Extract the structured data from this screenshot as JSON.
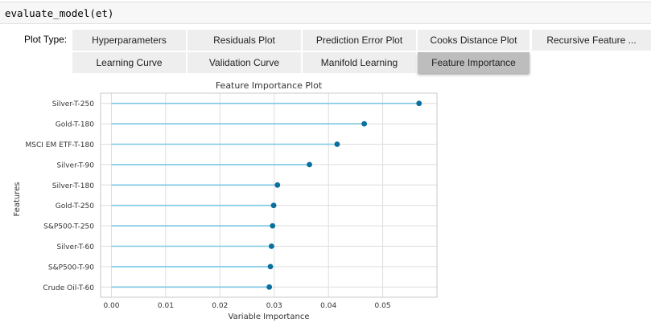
{
  "cell": {
    "code": "evaluate_model(et)"
  },
  "plot_type": {
    "label": "Plot Type:",
    "tabs_row1": [
      "Hyperparameters",
      "Residuals Plot",
      "Prediction Error Plot",
      "Cooks Distance Plot",
      "Recursive Feature ..."
    ],
    "tabs_row2": [
      "Learning Curve",
      "Validation Curve",
      "Manifold Learning",
      "Feature Importance"
    ],
    "selected": "Feature Importance"
  },
  "chart_data": {
    "type": "lollipop",
    "title": "Feature Importance Plot",
    "xlabel": "Variable Importance",
    "ylabel": "Features",
    "xlim": [
      -0.002,
      0.06
    ],
    "xticks": [
      0.0,
      0.01,
      0.02,
      0.03,
      0.04,
      0.05
    ],
    "xtick_labels": [
      "0.00",
      "0.01",
      "0.02",
      "0.03",
      "0.04",
      "0.05"
    ],
    "grid": true,
    "colors": {
      "stem": "#7ec8e3",
      "marker": "#0a6f9c",
      "grid": "#dddddd",
      "frame": "#c8c8c8"
    },
    "features": [
      "Silver-T-250",
      "Gold-T-180",
      "MSCI EM ETF-T-180",
      "Silver-T-90",
      "Silver-T-180",
      "Gold-T-250",
      "S&P500-T-250",
      "Silver-T-60",
      "S&P500-T-90",
      "Crude Oil-T-60"
    ],
    "values": [
      0.0567,
      0.0466,
      0.0416,
      0.0365,
      0.0306,
      0.0299,
      0.0297,
      0.0295,
      0.0293,
      0.0291
    ]
  }
}
